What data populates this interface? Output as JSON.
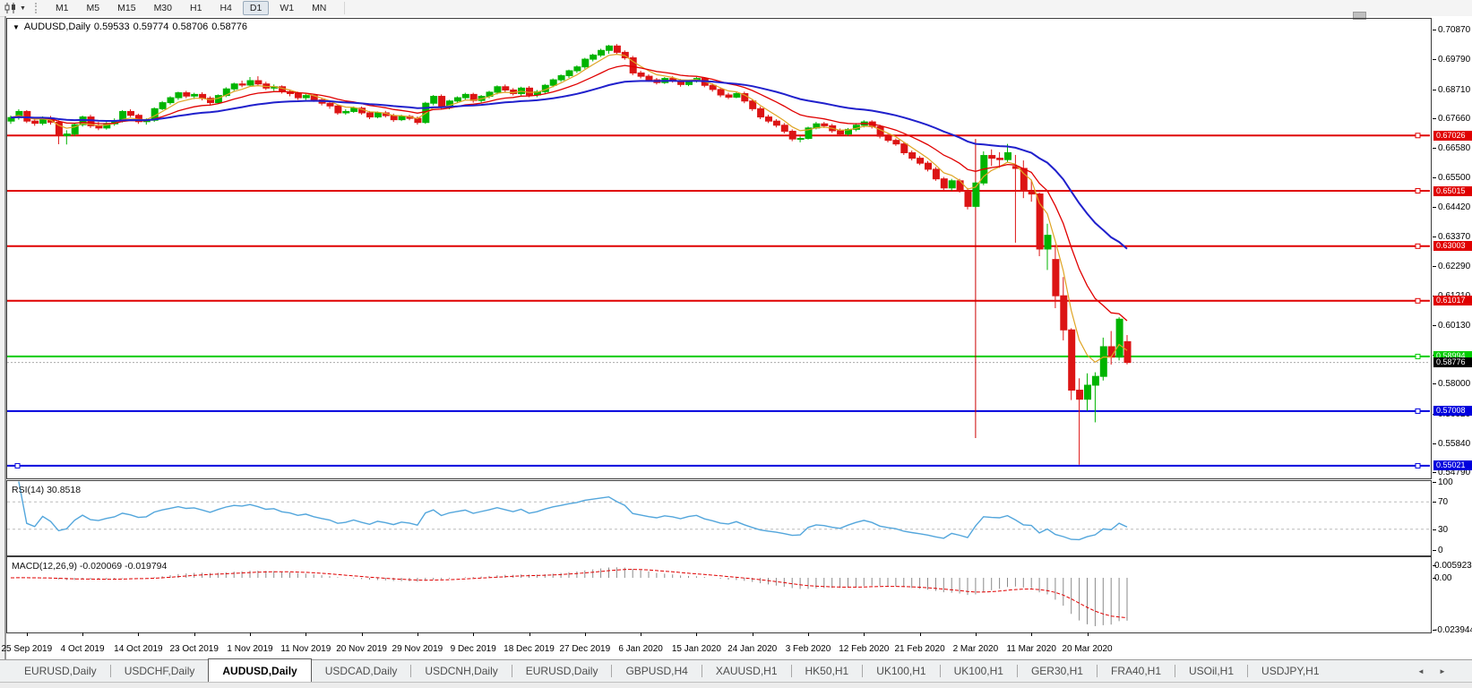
{
  "ui": {
    "toolbar": {
      "timeframes": [
        {
          "label": "M1",
          "active": false
        },
        {
          "label": "M5",
          "active": false
        },
        {
          "label": "M15",
          "active": false
        },
        {
          "label": "M30",
          "active": false
        },
        {
          "label": "H1",
          "active": false
        },
        {
          "label": "H4",
          "active": false
        },
        {
          "label": "D1",
          "active": true
        },
        {
          "label": "W1",
          "active": false
        },
        {
          "label": "MN",
          "active": false
        }
      ]
    },
    "title": {
      "symbol": "AUDUSD,Daily",
      "open": "0.59533",
      "high": "0.59774",
      "low": "0.58706",
      "close": "0.58776"
    },
    "rsi_label": "RSI(14) 30.8518",
    "macd_label": "MACD(12,26,9) -0.020069 -0.019794",
    "tabs": [
      {
        "label": "EURUSD,Daily",
        "active": false
      },
      {
        "label": "USDCHF,Daily",
        "active": false
      },
      {
        "label": "AUDUSD,Daily",
        "active": true
      },
      {
        "label": "USDCAD,Daily",
        "active": false
      },
      {
        "label": "USDCNH,Daily",
        "active": false
      },
      {
        "label": "EURUSD,Daily",
        "active": false
      },
      {
        "label": "GBPUSD,H4",
        "active": false
      },
      {
        "label": "XAUUSD,H1",
        "active": false
      },
      {
        "label": "HK50,H1",
        "active": false
      },
      {
        "label": "UK100,H1",
        "active": false
      },
      {
        "label": "UK100,H1",
        "active": false
      },
      {
        "label": "GER30,H1",
        "active": false
      },
      {
        "label": "FRA40,H1",
        "active": false
      },
      {
        "label": "USOil,H1",
        "active": false
      },
      {
        "label": "USDJPY,H1",
        "active": false
      }
    ],
    "icons": {
      "dropdown": "▼",
      "tab_scroll_left": "◄",
      "tab_scroll_right": "►"
    }
  },
  "chart_data": {
    "type": "candlestick",
    "symbol": "AUDUSD",
    "timeframe": "Daily",
    "current": {
      "open": 0.59533,
      "high": 0.59774,
      "low": 0.58706,
      "close": 0.58776
    },
    "price_range": [
      0.54628,
      0.71268
    ],
    "price_axis_ticks": [
      "0.70870",
      "0.69790",
      "0.68710",
      "0.67660",
      "0.66580",
      "0.65500",
      "0.64420",
      "0.63370",
      "0.62290",
      "0.61210",
      "0.60130",
      "0.59050",
      "0.58000",
      "0.56920",
      "0.55840",
      "0.54790"
    ],
    "date_ticks": [
      "25 Sep 2019",
      "4 Oct 2019",
      "14 Oct 2019",
      "23 Oct 2019",
      "1 Nov 2019",
      "11 Nov 2019",
      "20 Nov 2019",
      "29 Nov 2019",
      "9 Dec 2019",
      "18 Dec 2019",
      "27 Dec 2019",
      "6 Jan 2020",
      "15 Jan 2020",
      "24 Jan 2020",
      "3 Feb 2020",
      "12 Feb 2020",
      "21 Feb 2020",
      "2 Mar 2020",
      "11 Mar 2020",
      "20 Mar 2020"
    ],
    "horizontal_levels": [
      {
        "price": 0.67026,
        "label": "0.67026",
        "color": "#e00000",
        "handle_left": false
      },
      {
        "price": 0.65015,
        "label": "0.65015",
        "color": "#e00000",
        "handle_left": false
      },
      {
        "price": 0.63003,
        "label": "0.63003",
        "color": "#e00000",
        "handle_left": false
      },
      {
        "price": 0.61017,
        "label": "0.61017",
        "color": "#e00000",
        "handle_left": false
      },
      {
        "price": 0.58994,
        "label": "0.58994",
        "color": "#00cc00",
        "handle_left": false
      },
      {
        "price": 0.57008,
        "label": "0.57008",
        "color": "#0000dd",
        "handle_left": false
      },
      {
        "price": 0.55021,
        "label": "0.55021",
        "color": "#0000dd",
        "handle_left": true
      }
    ],
    "current_price": {
      "price": 0.58776,
      "label": "0.58776"
    },
    "vertical_line": {
      "index": 121,
      "price_from": 0.5603,
      "price_to": 0.669,
      "color": "#cc0000"
    },
    "moving_averages": [
      {
        "name": "fast",
        "period": 5,
        "color": "#dfa423",
        "width": 1.2
      },
      {
        "name": "medium",
        "period": 13,
        "color": "#e00000",
        "width": 1.3
      },
      {
        "name": "slow",
        "period": 34,
        "color": "#2020cc",
        "width": 2
      }
    ],
    "rsi": {
      "period": 14,
      "value": "30.8518",
      "levels": [
        70,
        30
      ],
      "axis_ticks": [
        "100",
        "70",
        "30",
        "0"
      ],
      "line_color": "#53a6dc"
    },
    "macd": {
      "fast": 12,
      "slow": 26,
      "signal": 9,
      "value_main": "-0.020069",
      "value_signal": "-0.019794",
      "axis_ticks": [
        {
          "label": "0.005923",
          "value": 0.005923
        },
        {
          "label": "0.00",
          "value": 0.0
        },
        {
          "label": "-0.023944",
          "value": -0.023944
        }
      ],
      "hist_color": "#8a8a8a",
      "signal_color": "#e00000"
    },
    "colors": {
      "bull": "#00b400",
      "bear": "#dc1414",
      "current_price_label_bg": "#000000",
      "current_price_line": "#aaaaaa"
    },
    "candles": [
      [
        0.6755,
        0.6775,
        0.6745,
        0.6768
      ],
      [
        0.6768,
        0.6798,
        0.676,
        0.679
      ],
      [
        0.679,
        0.6795,
        0.6748,
        0.6755
      ],
      [
        0.6755,
        0.6765,
        0.6738,
        0.6747
      ],
      [
        0.6747,
        0.6772,
        0.674,
        0.6766
      ],
      [
        0.6766,
        0.6774,
        0.6742,
        0.6751
      ],
      [
        0.6751,
        0.6758,
        0.6671,
        0.6702
      ],
      [
        0.6702,
        0.6722,
        0.667,
        0.6708
      ],
      [
        0.6708,
        0.6748,
        0.67,
        0.6742
      ],
      [
        0.6742,
        0.6775,
        0.6735,
        0.677
      ],
      [
        0.677,
        0.6778,
        0.673,
        0.6738
      ],
      [
        0.6738,
        0.6752,
        0.6722,
        0.673
      ],
      [
        0.673,
        0.6752,
        0.6724,
        0.6745
      ],
      [
        0.6745,
        0.6765,
        0.6738,
        0.6757
      ],
      [
        0.6757,
        0.6795,
        0.675,
        0.679
      ],
      [
        0.679,
        0.6798,
        0.677,
        0.6776
      ],
      [
        0.6776,
        0.6782,
        0.6745,
        0.6753
      ],
      [
        0.6753,
        0.6765,
        0.6742,
        0.6758
      ],
      [
        0.6758,
        0.6805,
        0.6752,
        0.68
      ],
      [
        0.68,
        0.6828,
        0.6795,
        0.6822
      ],
      [
        0.6822,
        0.6845,
        0.6815,
        0.684
      ],
      [
        0.684,
        0.6862,
        0.6832,
        0.6858
      ],
      [
        0.6858,
        0.6865,
        0.6838,
        0.6846
      ],
      [
        0.6846,
        0.6858,
        0.6835,
        0.6852
      ],
      [
        0.6852,
        0.686,
        0.683,
        0.6838
      ],
      [
        0.6838,
        0.6845,
        0.6815,
        0.6822
      ],
      [
        0.6822,
        0.6852,
        0.6818,
        0.6848
      ],
      [
        0.6848,
        0.6878,
        0.6842,
        0.6872
      ],
      [
        0.6872,
        0.6895,
        0.6865,
        0.689
      ],
      [
        0.689,
        0.6902,
        0.6878,
        0.6886
      ],
      [
        0.6886,
        0.6915,
        0.688,
        0.6902
      ],
      [
        0.6902,
        0.6918,
        0.6882,
        0.689
      ],
      [
        0.689,
        0.6898,
        0.6868,
        0.6875
      ],
      [
        0.6875,
        0.6888,
        0.6865,
        0.688
      ],
      [
        0.688,
        0.6885,
        0.6855,
        0.6862
      ],
      [
        0.6862,
        0.687,
        0.6845,
        0.6855
      ],
      [
        0.6855,
        0.6862,
        0.6832,
        0.684
      ],
      [
        0.684,
        0.6855,
        0.6832,
        0.6848
      ],
      [
        0.6848,
        0.6852,
        0.6825,
        0.6832
      ],
      [
        0.6832,
        0.684,
        0.6812,
        0.682
      ],
      [
        0.682,
        0.6828,
        0.68,
        0.681
      ],
      [
        0.681,
        0.6815,
        0.6778,
        0.6785
      ],
      [
        0.6785,
        0.6798,
        0.6778,
        0.679
      ],
      [
        0.679,
        0.6808,
        0.6785,
        0.6802
      ],
      [
        0.6802,
        0.6808,
        0.6778,
        0.6785
      ],
      [
        0.6785,
        0.6792,
        0.6762,
        0.677
      ],
      [
        0.677,
        0.679,
        0.6765,
        0.6785
      ],
      [
        0.6785,
        0.6792,
        0.6768,
        0.6775
      ],
      [
        0.6775,
        0.6782,
        0.6752,
        0.676
      ],
      [
        0.676,
        0.6778,
        0.6755,
        0.6772
      ],
      [
        0.6772,
        0.6778,
        0.6758,
        0.6765
      ],
      [
        0.6765,
        0.6772,
        0.6742,
        0.675
      ],
      [
        0.675,
        0.6825,
        0.6745,
        0.682
      ],
      [
        0.682,
        0.685,
        0.6812,
        0.6845
      ],
      [
        0.6845,
        0.6852,
        0.6798,
        0.6805
      ],
      [
        0.6805,
        0.6832,
        0.6798,
        0.6828
      ],
      [
        0.6828,
        0.6845,
        0.682,
        0.684
      ],
      [
        0.684,
        0.6858,
        0.6832,
        0.6852
      ],
      [
        0.6852,
        0.6858,
        0.6822,
        0.683
      ],
      [
        0.683,
        0.685,
        0.6822,
        0.6845
      ],
      [
        0.6845,
        0.6865,
        0.6838,
        0.686
      ],
      [
        0.686,
        0.6885,
        0.6852,
        0.688
      ],
      [
        0.688,
        0.6888,
        0.686,
        0.6868
      ],
      [
        0.6868,
        0.6875,
        0.6848,
        0.6855
      ],
      [
        0.6855,
        0.688,
        0.6848,
        0.6875
      ],
      [
        0.6875,
        0.6882,
        0.6842,
        0.685
      ],
      [
        0.685,
        0.6868,
        0.6842,
        0.6862
      ],
      [
        0.6862,
        0.689,
        0.6855,
        0.6885
      ],
      [
        0.6885,
        0.691,
        0.6878,
        0.6905
      ],
      [
        0.6905,
        0.6925,
        0.6898,
        0.692
      ],
      [
        0.692,
        0.6942,
        0.6912,
        0.6938
      ],
      [
        0.6938,
        0.6958,
        0.693,
        0.6952
      ],
      [
        0.6952,
        0.6985,
        0.6945,
        0.698
      ],
      [
        0.698,
        0.7,
        0.6972,
        0.6995
      ],
      [
        0.6995,
        0.7018,
        0.6988,
        0.7012
      ],
      [
        0.7012,
        0.7032,
        0.7,
        0.7028
      ],
      [
        0.7028,
        0.7035,
        0.6998,
        0.7005
      ],
      [
        0.7005,
        0.7012,
        0.6978,
        0.6985
      ],
      [
        0.6985,
        0.6992,
        0.6922,
        0.693
      ],
      [
        0.693,
        0.6938,
        0.691,
        0.6918
      ],
      [
        0.6918,
        0.6925,
        0.6898,
        0.6905
      ],
      [
        0.6905,
        0.6912,
        0.6888,
        0.6895
      ],
      [
        0.6895,
        0.6915,
        0.689,
        0.691
      ],
      [
        0.691,
        0.6918,
        0.6895,
        0.6902
      ],
      [
        0.6902,
        0.6908,
        0.688,
        0.6888
      ],
      [
        0.6888,
        0.6905,
        0.6882,
        0.6902
      ],
      [
        0.6902,
        0.6915,
        0.6895,
        0.691
      ],
      [
        0.691,
        0.6915,
        0.6878,
        0.6885
      ],
      [
        0.6885,
        0.6892,
        0.6862,
        0.687
      ],
      [
        0.687,
        0.6878,
        0.6842,
        0.685
      ],
      [
        0.685,
        0.6858,
        0.6835,
        0.6842
      ],
      [
        0.6842,
        0.686,
        0.6838,
        0.6855
      ],
      [
        0.6855,
        0.6862,
        0.682,
        0.6828
      ],
      [
        0.6828,
        0.6835,
        0.6792,
        0.68
      ],
      [
        0.68,
        0.6808,
        0.6762,
        0.677
      ],
      [
        0.677,
        0.6778,
        0.6748,
        0.6755
      ],
      [
        0.6755,
        0.6762,
        0.6732,
        0.674
      ],
      [
        0.674,
        0.6748,
        0.671,
        0.6718
      ],
      [
        0.6718,
        0.6725,
        0.6682,
        0.669
      ],
      [
        0.669,
        0.67,
        0.6678,
        0.6692
      ],
      [
        0.6692,
        0.6735,
        0.6688,
        0.673
      ],
      [
        0.673,
        0.6752,
        0.6725,
        0.6745
      ],
      [
        0.6745,
        0.6752,
        0.673,
        0.6738
      ],
      [
        0.6738,
        0.6745,
        0.6712,
        0.672
      ],
      [
        0.672,
        0.6728,
        0.67,
        0.6708
      ],
      [
        0.6708,
        0.673,
        0.6702,
        0.6725
      ],
      [
        0.6725,
        0.6748,
        0.6718,
        0.674
      ],
      [
        0.674,
        0.6758,
        0.6732,
        0.6752
      ],
      [
        0.6752,
        0.6758,
        0.6728,
        0.6735
      ],
      [
        0.6735,
        0.6742,
        0.6692,
        0.67
      ],
      [
        0.67,
        0.6708,
        0.6678,
        0.6685
      ],
      [
        0.6685,
        0.6692,
        0.6665,
        0.6672
      ],
      [
        0.6672,
        0.6678,
        0.6632,
        0.664
      ],
      [
        0.664,
        0.6648,
        0.6612,
        0.662
      ],
      [
        0.662,
        0.6628,
        0.6595,
        0.6602
      ],
      [
        0.6602,
        0.661,
        0.6572,
        0.658
      ],
      [
        0.658,
        0.6588,
        0.6538,
        0.6545
      ],
      [
        0.6545,
        0.6552,
        0.6505,
        0.6512
      ],
      [
        0.6512,
        0.6545,
        0.6502,
        0.6538
      ],
      [
        0.6538,
        0.6545,
        0.6495,
        0.6502
      ],
      [
        0.6502,
        0.6512,
        0.6434,
        0.6445
      ],
      [
        0.6445,
        0.6535,
        0.644,
        0.653
      ],
      [
        0.653,
        0.6645,
        0.6522,
        0.663
      ],
      [
        0.663,
        0.6652,
        0.6592,
        0.662
      ],
      [
        0.662,
        0.6642,
        0.6585,
        0.6615
      ],
      [
        0.6615,
        0.6672,
        0.6605,
        0.664
      ],
      [
        0.659,
        0.6632,
        0.6313,
        0.6583
      ],
      [
        0.6583,
        0.6612,
        0.6475,
        0.65
      ],
      [
        0.65,
        0.6542,
        0.6462,
        0.649
      ],
      [
        0.649,
        0.6496,
        0.6264,
        0.629
      ],
      [
        0.629,
        0.6382,
        0.6214,
        0.634
      ],
      [
        0.6252,
        0.6305,
        0.6075,
        0.612
      ],
      [
        0.612,
        0.6188,
        0.5958,
        0.5996
      ],
      [
        0.5996,
        0.6002,
        0.5741,
        0.5777
      ],
      [
        0.5777,
        0.582,
        0.5506,
        0.5744
      ],
      [
        0.5744,
        0.5838,
        0.5702,
        0.5795
      ],
      [
        0.5795,
        0.5842,
        0.566,
        0.5827
      ],
      [
        0.5827,
        0.5968,
        0.5812,
        0.5935
      ],
      [
        0.5935,
        0.5992,
        0.587,
        0.5897
      ],
      [
        0.5897,
        0.6042,
        0.5885,
        0.6035
      ],
      [
        0.59533,
        0.59774,
        0.58706,
        0.58776
      ]
    ]
  }
}
